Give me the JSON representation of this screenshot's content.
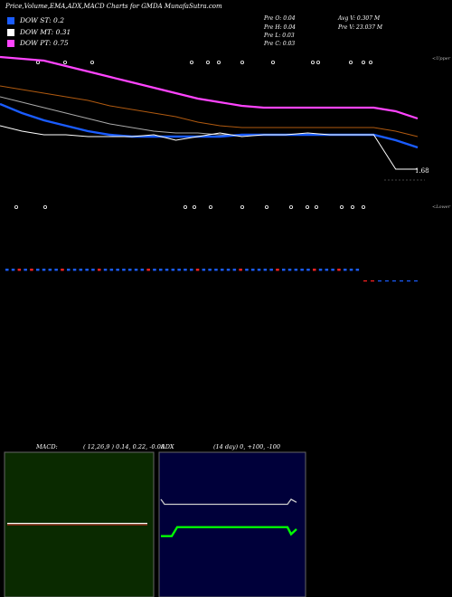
{
  "title": "Price,Volume,EMA,ADX,MACD Charts for GMDA MunafaSutra.com",
  "legend": [
    {
      "label": "DOW ST: 0.2",
      "color": "#1a5cff"
    },
    {
      "label": "DOW MT: 0.31",
      "color": "#ffffff"
    },
    {
      "label": "DOW PT: 0.75",
      "color": "#ff44ff"
    }
  ],
  "stats": {
    "open": "Pre  O: 0.04",
    "high": "Pre  H: 0.04",
    "low": "Pre  L: 0.03",
    "close": "Pre  C: 0.03",
    "avg_vol": "Avg V: 0.307 M",
    "pre_vol": "Pre  V: 23.037 M"
  },
  "side_labels": {
    "upper": "<Upper",
    "lower": "<Lower"
  },
  "price_label": "1.68",
  "macd": {
    "title": "MACD:",
    "params": "( 12,26,9 ) 0.14,  0.22,  -0.08"
  },
  "adx": {
    "title": "ADX",
    "params": "(14  day) 0,  +100,  -100"
  },
  "colors": {
    "pink": "#ff44ff",
    "blue": "#1a5cff",
    "brown": "#b05a10",
    "green_bg": "#0a2a00",
    "navy_bg": "#00003a",
    "green": "#00ff00",
    "red": "#ff2222"
  },
  "chart_data": {
    "type": "line",
    "series": [
      {
        "key": "pink_ema",
        "values": [
          2.36,
          2.35,
          2.34,
          2.31,
          2.28,
          2.25,
          2.22,
          2.19,
          2.16,
          2.13,
          2.11,
          2.09,
          2.08,
          2.08,
          2.08,
          2.08,
          2.08,
          2.08,
          2.06,
          2.02
        ]
      },
      {
        "key": "brown_ema",
        "values": [
          2.2,
          2.18,
          2.16,
          2.14,
          2.12,
          2.09,
          2.07,
          2.05,
          2.03,
          2.0,
          1.98,
          1.97,
          1.97,
          1.97,
          1.97,
          1.97,
          1.97,
          1.97,
          1.95,
          1.92
        ]
      },
      {
        "key": "gray_ema",
        "values": [
          2.14,
          2.11,
          2.08,
          2.05,
          2.02,
          1.99,
          1.97,
          1.95,
          1.94,
          1.94,
          1.93,
          1.93,
          1.93,
          1.93,
          1.93,
          1.93,
          1.93,
          1.93,
          1.9,
          1.86
        ]
      },
      {
        "key": "blue_ema",
        "values": [
          2.1,
          2.05,
          2.01,
          1.98,
          1.95,
          1.93,
          1.92,
          1.92,
          1.92,
          1.92,
          1.92,
          1.93,
          1.93,
          1.93,
          1.93,
          1.93,
          1.93,
          1.93,
          1.9,
          1.86
        ]
      },
      {
        "key": "price",
        "values": [
          1.98,
          1.95,
          1.93,
          1.93,
          1.92,
          1.92,
          1.92,
          1.93,
          1.9,
          1.92,
          1.94,
          1.92,
          1.93,
          1.93,
          1.94,
          1.93,
          1.93,
          1.93,
          1.74,
          1.74
        ]
      }
    ],
    "price_marker": 1.68,
    "ylim": [
      1.6,
      2.4
    ],
    "macd_values": [
      0.14,
      0.14,
      0.14,
      0.14,
      0.14,
      0.14,
      0.14,
      0.14,
      0.14,
      0.14,
      0.14
    ],
    "adx_plus": [
      43,
      43,
      52,
      52,
      52,
      52,
      52,
      52,
      52,
      52,
      52,
      45,
      50
    ],
    "adx_minus": [
      80,
      75,
      75,
      75,
      75,
      75,
      75,
      75,
      75,
      75,
      75,
      80,
      77
    ]
  }
}
